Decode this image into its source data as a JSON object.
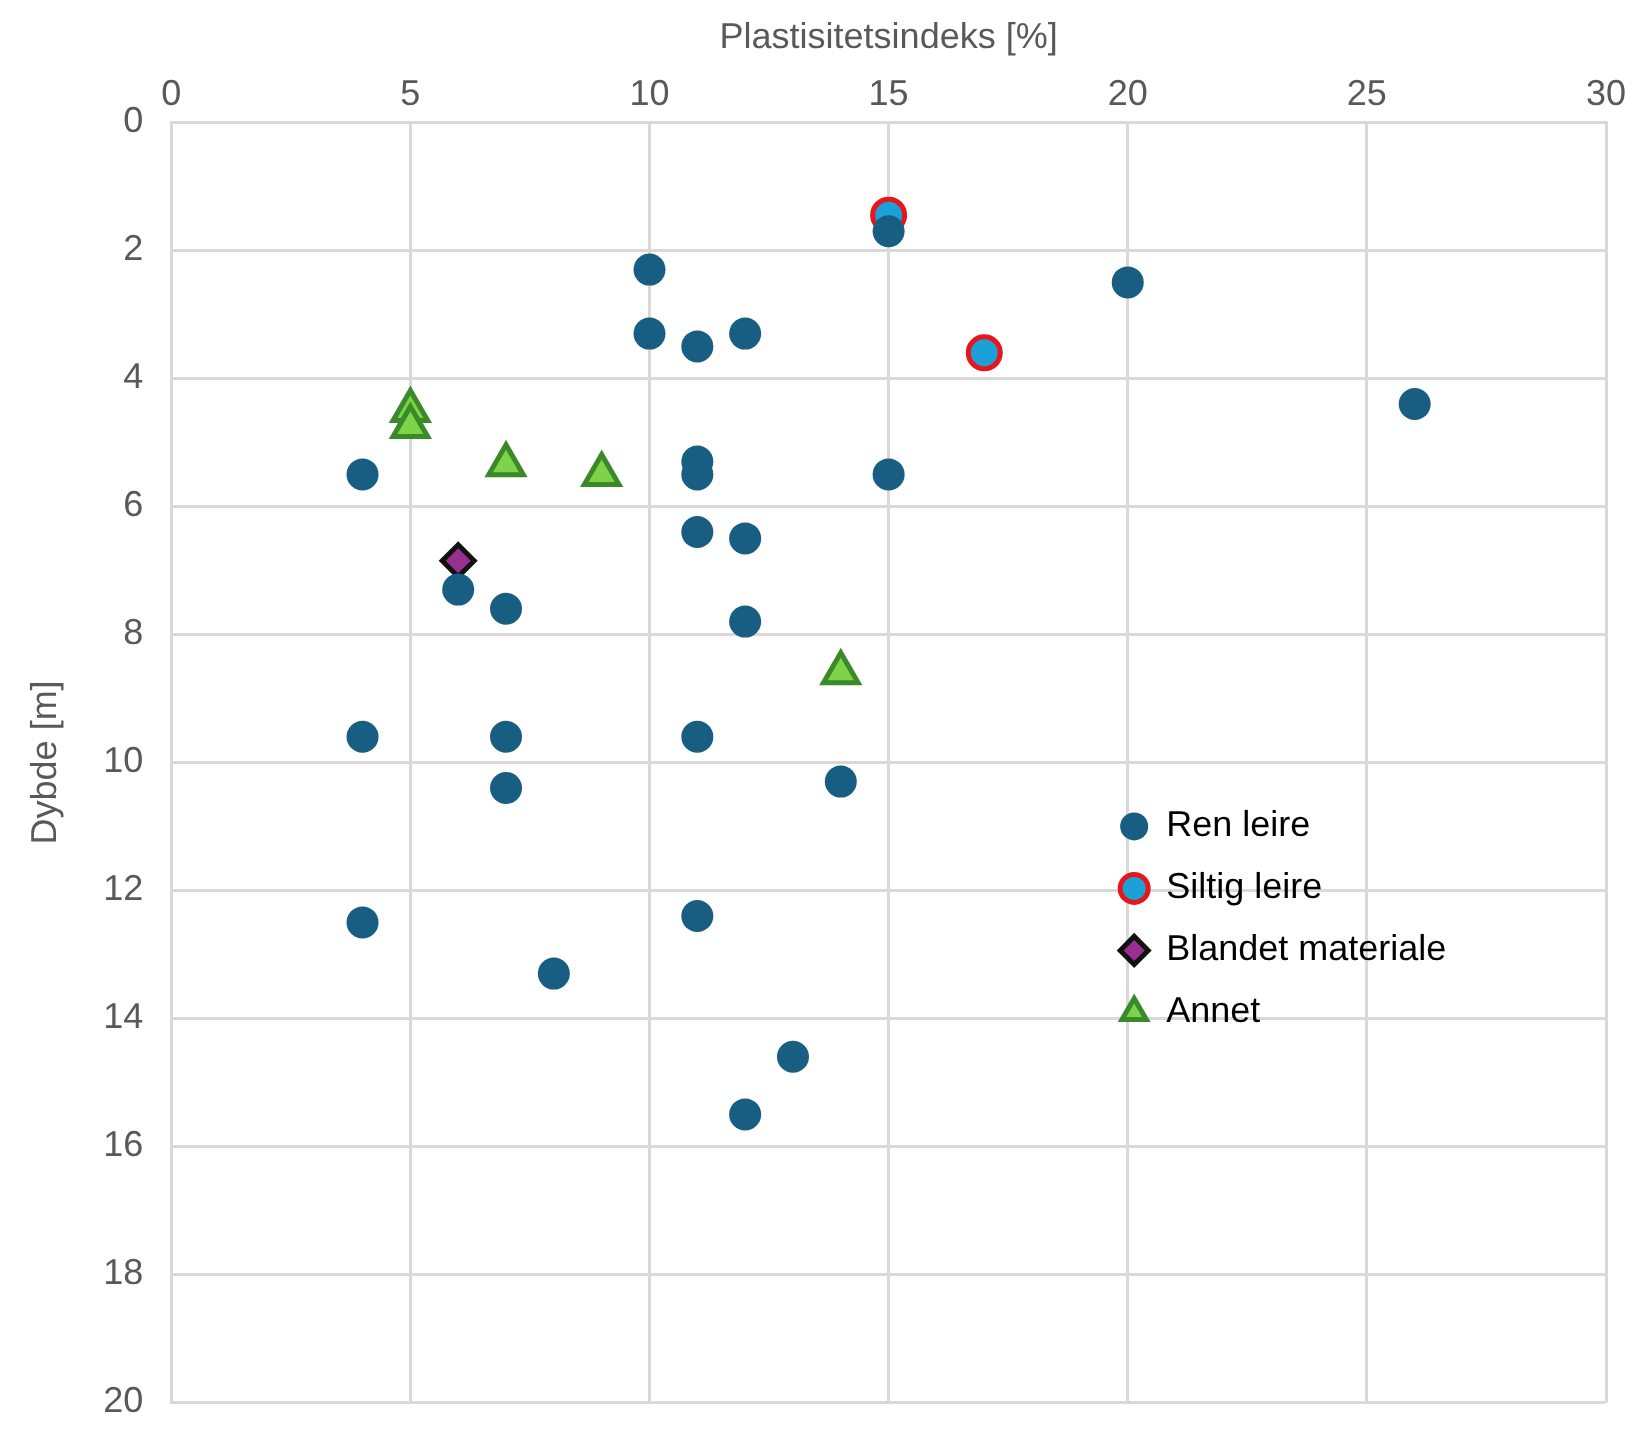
{
  "chart_data": {
    "type": "scatter",
    "xlabel": "Plastisitetsindeks [%]",
    "ylabel": "Dybde [m]",
    "xlim": [
      0,
      30
    ],
    "xticks": [
      0,
      5,
      10,
      15,
      20,
      25,
      30
    ],
    "ylim": [
      20,
      0
    ],
    "yticks": [
      0,
      2,
      4,
      6,
      8,
      10,
      12,
      14,
      16,
      18,
      20
    ],
    "grid": true,
    "legend": "right",
    "series": [
      {
        "name": "Ren leire",
        "color": "#175e82",
        "marker": "circle",
        "x": [
          15,
          10,
          20,
          10,
          11,
          12,
          26,
          4,
          11,
          11,
          15,
          11,
          12,
          6,
          7,
          12,
          4,
          7,
          11,
          7,
          14,
          4,
          11,
          8,
          13,
          12
        ],
        "values": [
          1.7,
          2.3,
          2.5,
          3.3,
          3.5,
          3.3,
          4.4,
          5.5,
          5.3,
          5.5,
          5.5,
          6.4,
          6.5,
          7.3,
          7.6,
          7.8,
          9.6,
          9.6,
          9.6,
          10.4,
          10.3,
          12.5,
          12.4,
          13.3,
          14.6,
          15.5
        ]
      },
      {
        "name": "Siltig leire",
        "color": "#1ba1d8",
        "marker": "circle",
        "x": [
          15,
          17
        ],
        "values": [
          1.45,
          3.6
        ]
      },
      {
        "name": "Blandet materiale",
        "color": "#9a2f92",
        "marker": "diamond",
        "x": [
          6
        ],
        "values": [
          6.85
        ]
      },
      {
        "name": "Annet",
        "color": "#7ed348",
        "marker": "triangle",
        "x": [
          5,
          5,
          7,
          9,
          14
        ],
        "values": [
          4.5,
          4.75,
          5.35,
          5.5,
          8.6
        ]
      }
    ]
  }
}
